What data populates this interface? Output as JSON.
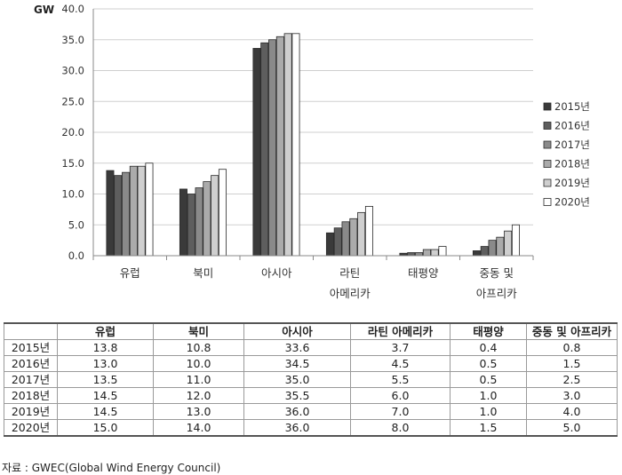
{
  "chart_data": {
    "type": "bar",
    "ylabel": "GW",
    "ylim": [
      0,
      40
    ],
    "yticks": [
      "0.0",
      "5.0",
      "10.0",
      "15.0",
      "20.0",
      "25.0",
      "30.0",
      "35.0",
      "40.0"
    ],
    "categories": [
      {
        "lines": [
          "유럽"
        ]
      },
      {
        "lines": [
          "북미"
        ]
      },
      {
        "lines": [
          "아시아"
        ]
      },
      {
        "lines": [
          "라틴",
          "아메리카"
        ]
      },
      {
        "lines": [
          "태평양"
        ]
      },
      {
        "lines": [
          "중동 및",
          "아프리카"
        ]
      }
    ],
    "series": [
      {
        "name": "2015년",
        "color": "#3a3a3a",
        "values": [
          13.8,
          10.8,
          33.6,
          3.7,
          0.4,
          0.8
        ]
      },
      {
        "name": "2016년",
        "color": "#5e5e5e",
        "values": [
          13.0,
          10.0,
          34.5,
          4.5,
          0.5,
          1.5
        ]
      },
      {
        "name": "2017년",
        "color": "#8a8a8a",
        "values": [
          13.5,
          11.0,
          35.0,
          5.5,
          0.5,
          2.5
        ]
      },
      {
        "name": "2018년",
        "color": "#ababab",
        "values": [
          14.5,
          12.0,
          35.5,
          6.0,
          1.0,
          3.0
        ]
      },
      {
        "name": "2019년",
        "color": "#cfcfcf",
        "values": [
          14.5,
          13.0,
          36.0,
          7.0,
          1.0,
          4.0
        ]
      },
      {
        "name": "2020년",
        "color": "#ffffff",
        "values": [
          15.0,
          14.0,
          36.0,
          8.0,
          1.5,
          5.0
        ]
      }
    ],
    "legend": "right",
    "grid": true
  },
  "table": {
    "headers": [
      "유럽",
      "북미",
      "아시아",
      "라틴 아메리카",
      "태평양",
      "중동 및 아프리카"
    ],
    "rows": [
      {
        "label": "2015년",
        "values": [
          "13.8",
          "10.8",
          "33.6",
          "3.7",
          "0.4",
          "0.8"
        ]
      },
      {
        "label": "2016년",
        "values": [
          "13.0",
          "10.0",
          "34.5",
          "4.5",
          "0.5",
          "1.5"
        ]
      },
      {
        "label": "2017년",
        "values": [
          "13.5",
          "11.0",
          "35.0",
          "5.5",
          "0.5",
          "2.5"
        ]
      },
      {
        "label": "2018년",
        "values": [
          "14.5",
          "12.0",
          "35.5",
          "6.0",
          "1.0",
          "3.0"
        ]
      },
      {
        "label": "2019년",
        "values": [
          "14.5",
          "13.0",
          "36.0",
          "7.0",
          "1.0",
          "4.0"
        ]
      },
      {
        "label": "2020년",
        "values": [
          "15.0",
          "14.0",
          "36.0",
          "8.0",
          "1.5",
          "5.0"
        ]
      }
    ]
  },
  "source": "자료 : GWEC(Global Wind Energy Council)"
}
